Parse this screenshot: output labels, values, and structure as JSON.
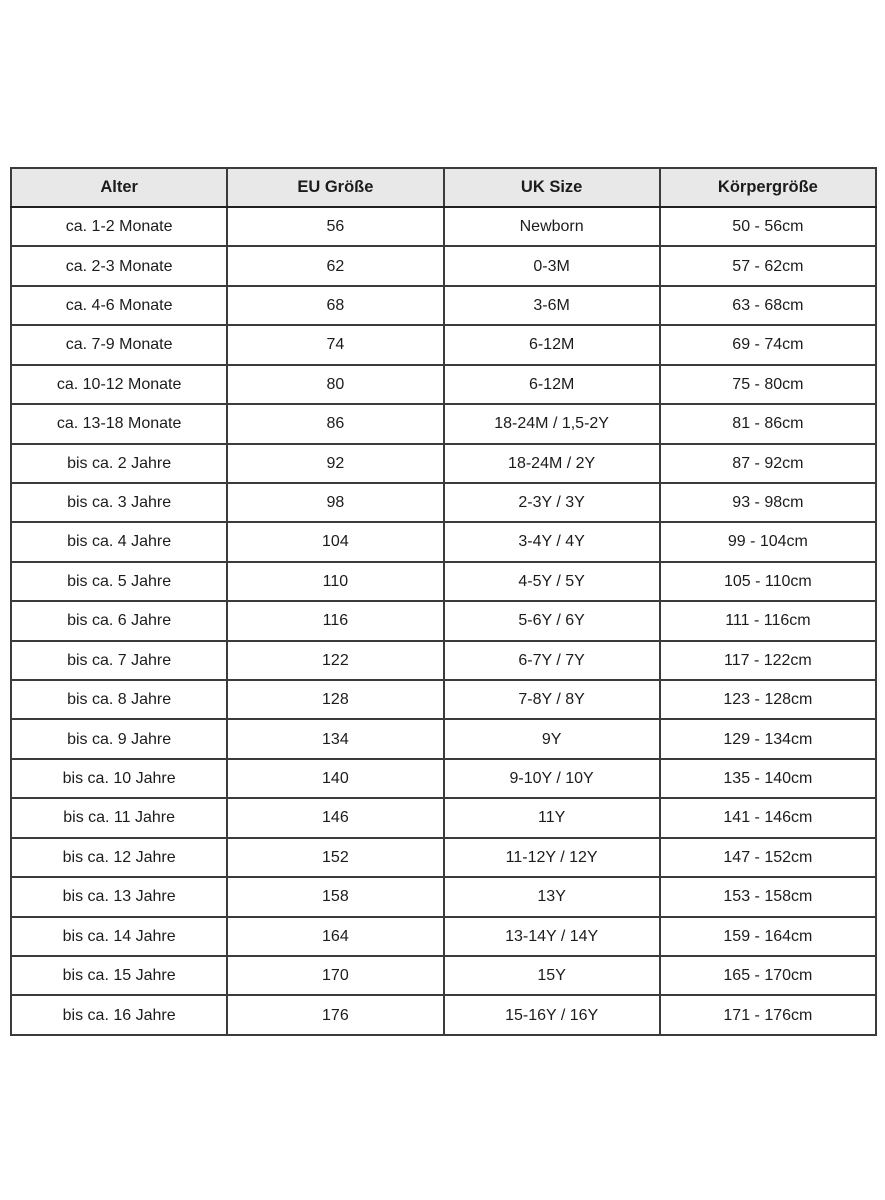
{
  "page": {
    "background_color": "#ffffff",
    "table_header_bg": "#e8e8e8",
    "table_border_color": "#333333",
    "text_color": "#1c1c1c"
  },
  "chart_data": {
    "type": "table",
    "title": "",
    "columns": [
      "Alter",
      "EU Größe",
      "UK Size",
      "Körpergröße"
    ],
    "rows": [
      [
        "ca. 1-2 Monate",
        "56",
        "Newborn",
        "50 - 56cm"
      ],
      [
        "ca. 2-3 Monate",
        "62",
        "0-3M",
        "57 - 62cm"
      ],
      [
        "ca. 4-6 Monate",
        "68",
        "3-6M",
        "63 - 68cm"
      ],
      [
        "ca. 7-9 Monate",
        "74",
        "6-12M",
        "69 - 74cm"
      ],
      [
        "ca. 10-12 Monate",
        "80",
        "6-12M",
        "75 - 80cm"
      ],
      [
        "ca. 13-18 Monate",
        "86",
        "18-24M / 1,5-2Y",
        "81 - 86cm"
      ],
      [
        "bis ca. 2 Jahre",
        "92",
        "18-24M / 2Y",
        "87 - 92cm"
      ],
      [
        "bis ca. 3 Jahre",
        "98",
        "2-3Y / 3Y",
        "93 - 98cm"
      ],
      [
        "bis ca. 4 Jahre",
        "104",
        "3-4Y / 4Y",
        "99 - 104cm"
      ],
      [
        "bis ca. 5 Jahre",
        "110",
        "4-5Y / 5Y",
        "105 - 110cm"
      ],
      [
        "bis ca. 6 Jahre",
        "116",
        "5-6Y / 6Y",
        "111 - 116cm"
      ],
      [
        "bis ca. 7 Jahre",
        "122",
        "6-7Y / 7Y",
        "117 - 122cm"
      ],
      [
        "bis ca. 8 Jahre",
        "128",
        "7-8Y / 8Y",
        "123 - 128cm"
      ],
      [
        "bis ca. 9 Jahre",
        "134",
        "9Y",
        "129 - 134cm"
      ],
      [
        "bis ca. 10 Jahre",
        "140",
        "9-10Y / 10Y",
        "135 - 140cm"
      ],
      [
        "bis ca. 11 Jahre",
        "146",
        "11Y",
        "141 - 146cm"
      ],
      [
        "bis ca. 12 Jahre",
        "152",
        "11-12Y / 12Y",
        "147 - 152cm"
      ],
      [
        "bis ca. 13 Jahre",
        "158",
        "13Y",
        "153 - 158cm"
      ],
      [
        "bis ca. 14 Jahre",
        "164",
        "13-14Y / 14Y",
        "159 - 164cm"
      ],
      [
        "bis ca. 15 Jahre",
        "170",
        "15Y",
        "165 - 170cm"
      ],
      [
        "bis ca. 16 Jahre",
        "176",
        "15-16Y / 16Y",
        "171 - 176cm"
      ]
    ]
  }
}
